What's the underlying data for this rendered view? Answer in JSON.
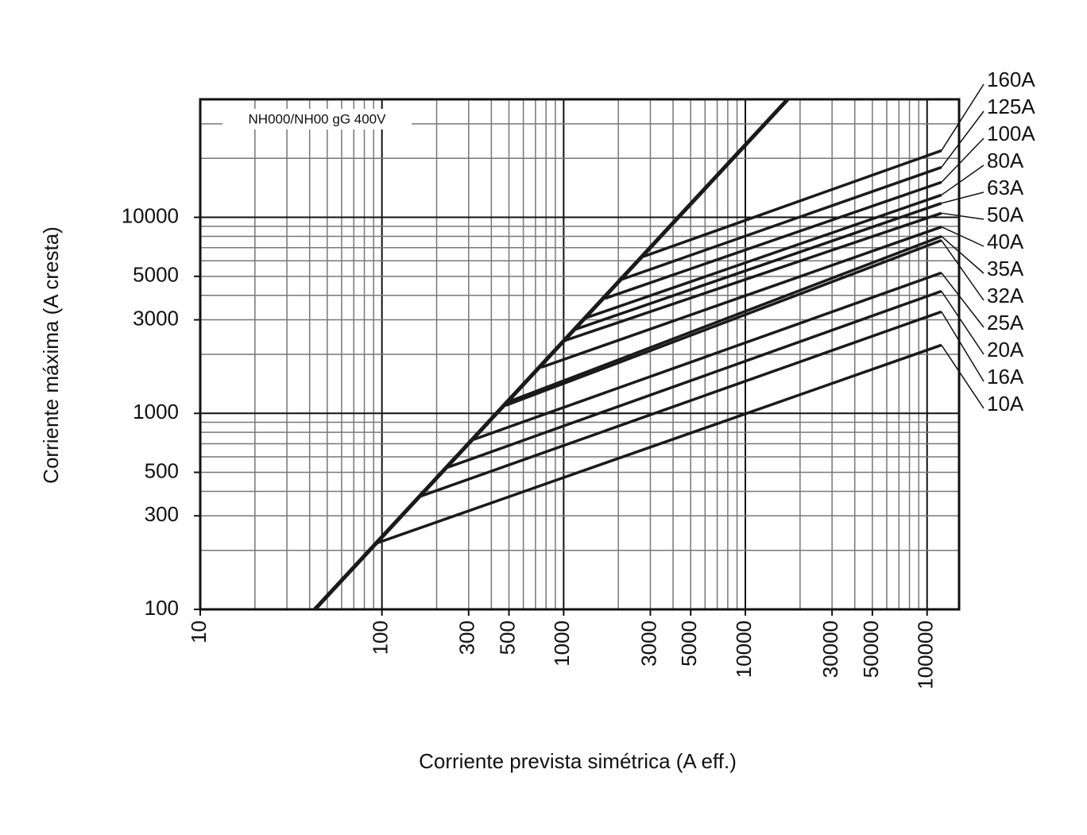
{
  "chart_data": {
    "type": "line",
    "title": "NH000/NH00 gG 400V",
    "x_label": "Corriente prevista simétrica (A eff.)",
    "y_label": "Corriente máxima (A cresta)",
    "log_x": true,
    "log_y": true,
    "grid": true,
    "color": "#1a1a1a",
    "xlim": [
      10,
      150000
    ],
    "ylim": [
      100,
      40000
    ],
    "xticks": [
      10,
      100,
      300,
      500,
      1000,
      3000,
      5000,
      10000,
      30000,
      50000,
      100000
    ],
    "yticks": [
      100,
      300,
      500,
      1000,
      3000,
      5000,
      10000
    ],
    "x_grid": [
      10,
      20,
      30,
      40,
      50,
      60,
      70,
      80,
      90,
      100,
      200,
      300,
      400,
      500,
      600,
      700,
      800,
      900,
      1000,
      2000,
      3000,
      4000,
      5000,
      6000,
      7000,
      8000,
      9000,
      10000,
      20000,
      30000,
      40000,
      50000,
      60000,
      70000,
      80000,
      90000,
      100000
    ],
    "y_grid": [
      100,
      200,
      300,
      400,
      500,
      600,
      700,
      800,
      900,
      1000,
      2000,
      3000,
      4000,
      5000,
      6000,
      7000,
      8000,
      9000,
      10000,
      20000,
      30000
    ],
    "series": [
      {
        "x": [
          42.7,
          17100
        ],
        "values": [
          100,
          40000
        ]
      },
      {
        "name": "160A",
        "x": [
          2750,
          120000
        ],
        "values": [
          6310,
          21900
        ]
      },
      {
        "name": "125A",
        "x": [
          2030,
          120000
        ],
        "values": [
          4780,
          18000
        ]
      },
      {
        "name": "100A",
        "x": [
          1690,
          120000
        ],
        "values": [
          3860,
          15100
        ]
      },
      {
        "name": "80A",
        "x": [
          1313,
          120000
        ],
        "values": [
          3060,
          13000
        ]
      },
      {
        "name": "63A",
        "x": [
          1130,
          120000
        ],
        "values": [
          2660,
          11800
        ]
      },
      {
        "name": "50A",
        "x": [
          1020,
          120000
        ],
        "values": [
          2355,
          10500
        ]
      },
      {
        "name": "40A",
        "x": [
          753,
          120000
        ],
        "values": [
          1717,
          8940
        ]
      },
      {
        "name": "35A",
        "x": [
          503,
          120000
        ],
        "values": [
          1150,
          8000
        ]
      },
      {
        "name": "32A",
        "x": [
          479,
          120000
        ],
        "values": [
          1097,
          7630
        ]
      },
      {
        "name": "25A",
        "x": [
          319,
          120000
        ],
        "values": [
          735,
          5210
        ]
      },
      {
        "name": "20A",
        "x": [
          231,
          120000
        ],
        "values": [
          531,
          4200
        ]
      },
      {
        "name": "16A",
        "x": [
          161,
          120000
        ],
        "values": [
          376,
          3300
        ]
      },
      {
        "name": "10A",
        "x": [
          90,
          120000
        ],
        "values": [
          215,
          2230
        ]
      }
    ]
  }
}
